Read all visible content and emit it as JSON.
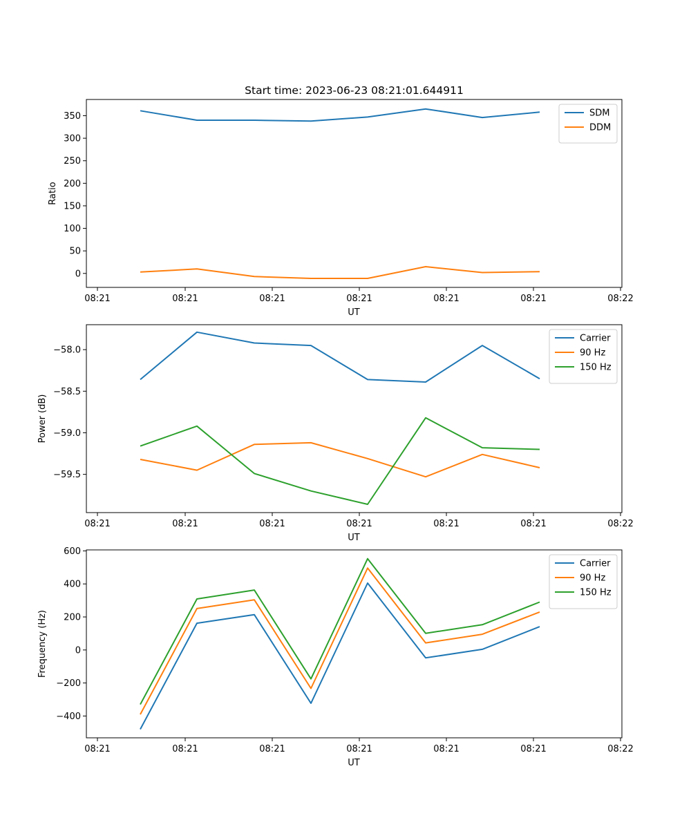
{
  "chart_data": [
    {
      "type": "line",
      "title": "Start time: 2023-06-23 08:21:01.644911",
      "xlabel": "UT",
      "ylabel": "Ratio",
      "x_tick_labels": [
        "08:21",
        "08:21",
        "08:21",
        "08:21",
        "08:21",
        "08:21",
        "08:22"
      ],
      "y_ticks": [
        0,
        50,
        100,
        150,
        200,
        250,
        300,
        350
      ],
      "y_tick_labels": [
        "0",
        "50",
        "100",
        "150",
        "200",
        "250",
        "300",
        "350"
      ],
      "ylim": [
        -31,
        386
      ],
      "grid": false,
      "legend_position": "top-right",
      "series": [
        {
          "name": "SDM",
          "color": "#1f77b4",
          "values": [
            361,
            340,
            340,
            338,
            347,
            365,
            346,
            358
          ]
        },
        {
          "name": "DDM",
          "color": "#ff7f0e",
          "values": [
            3,
            10,
            -7,
            -11,
            -11,
            15,
            2,
            4
          ]
        }
      ]
    },
    {
      "type": "line",
      "title": "",
      "xlabel": "UT",
      "ylabel": "Power (dB)",
      "x_tick_labels": [
        "08:21",
        "08:21",
        "08:21",
        "08:21",
        "08:21",
        "08:21",
        "08:22"
      ],
      "y_ticks": [
        -59.5,
        -59.0,
        -58.5,
        -58.0
      ],
      "y_tick_labels": [
        "−59.5",
        "−59.0",
        "−58.5",
        "−58.0"
      ],
      "ylim": [
        -59.96,
        -57.7
      ],
      "grid": false,
      "legend_position": "top-right",
      "series": [
        {
          "name": "Carrier",
          "color": "#1f77b4",
          "values": [
            -58.36,
            -57.79,
            -57.92,
            -57.95,
            -58.36,
            -58.39,
            -57.95,
            -58.35
          ]
        },
        {
          "name": "90 Hz",
          "color": "#ff7f0e",
          "values": [
            -59.32,
            -59.45,
            -59.14,
            -59.12,
            -59.31,
            -59.53,
            -59.26,
            -59.42
          ]
        },
        {
          "name": "150 Hz",
          "color": "#2ca02c",
          "values": [
            -59.16,
            -58.92,
            -59.49,
            -59.7,
            -59.86,
            -58.82,
            -59.18,
            -59.2
          ]
        }
      ]
    },
    {
      "type": "line",
      "title": "",
      "xlabel": "UT",
      "ylabel": "Frequency (Hz)",
      "x_tick_labels": [
        "08:21",
        "08:21",
        "08:21",
        "08:21",
        "08:21",
        "08:21",
        "08:22"
      ],
      "y_ticks": [
        -400,
        -200,
        0,
        200,
        400,
        600
      ],
      "y_tick_labels": [
        "−400",
        "−200",
        "0",
        "200",
        "400",
        "600"
      ],
      "ylim": [
        -532,
        606
      ],
      "grid": false,
      "legend_position": "top-right",
      "series": [
        {
          "name": "Carrier",
          "color": "#1f77b4",
          "values": [
            -480,
            162,
            214,
            -323,
            405,
            -48,
            4,
            141
          ]
        },
        {
          "name": "90 Hz",
          "color": "#ff7f0e",
          "values": [
            -390,
            251,
            304,
            -233,
            496,
            43,
            95,
            230
          ]
        },
        {
          "name": "150 Hz",
          "color": "#2ca02c",
          "values": [
            -330,
            309,
            363,
            -175,
            553,
            101,
            153,
            290
          ]
        }
      ]
    }
  ]
}
